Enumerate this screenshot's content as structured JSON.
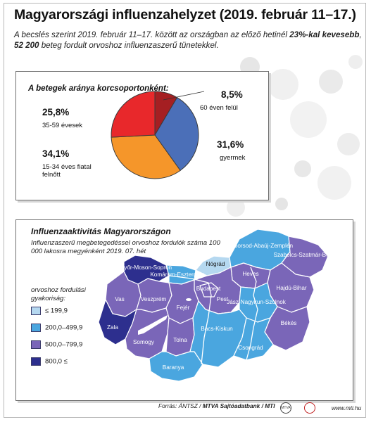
{
  "header": {
    "title": "Magyarországi influenzahelyzet (2019. február 11–17.)",
    "intro_part1": "A becslés szerint 2019. február 11–17. között az országban az előző hetinél ",
    "intro_bold1": "23%-kal kevesebb",
    "intro_part2": ", ",
    "intro_bold2": "52 200",
    "intro_part3": " beteg fordult orvoshoz influenzaszerű tünetekkel."
  },
  "chart_data": [
    {
      "type": "pie",
      "title": "A betegek aránya korcsoportonként:",
      "slices": [
        {
          "label": "60 éven felül",
          "pct_label": "8,5%",
          "value": 8.5,
          "color": "#a51f22"
        },
        {
          "label": "gyermek",
          "pct_label": "31,6%",
          "value": 31.6,
          "color": "#4b6fb8"
        },
        {
          "label": "15-34 éves fiatal felnőtt",
          "pct_label": "34,1%",
          "value": 34.1,
          "color": "#f5962a"
        },
        {
          "label": "35-59 évesek",
          "pct_label": "25,8%",
          "value": 25.8,
          "color": "#e8282b"
        }
      ]
    },
    {
      "type": "choropleth",
      "title": "Influenzaaktivitás Magyarországon",
      "subtitle": "Influenzaszerű megbetegedéssel orvoshoz fordulók száma 100 000 lakosra megyénként 2019. 07. hét",
      "legend_title": "orvoshoz fordulási gyakoriság:",
      "classes": [
        {
          "label": "≤  199,9",
          "color": "#b5d8f0"
        },
        {
          "label": "200,0–499,9",
          "color": "#4aa6df"
        },
        {
          "label": "500,0–799,9",
          "color": "#7a66b8"
        },
        {
          "label": "800,0  ≤",
          "color": "#2d2f8e"
        }
      ],
      "regions": [
        {
          "name": "Győr-Moson-Sopron",
          "class": 3
        },
        {
          "name": "Komárom-Esztergom",
          "class": 1
        },
        {
          "name": "Nógrád",
          "class": 0
        },
        {
          "name": "Borsod-Abaúj-Zemplén",
          "class": 1
        },
        {
          "name": "Szabolcs-Szatmár-Bereg",
          "class": 2
        },
        {
          "name": "Heves",
          "class": 2
        },
        {
          "name": "Hajdú-Bihar",
          "class": 2
        },
        {
          "name": "Vas",
          "class": 2
        },
        {
          "name": "Veszprém",
          "class": 2
        },
        {
          "name": "Budapest",
          "class": 2
        },
        {
          "name": "Pest",
          "class": 2
        },
        {
          "name": "Jász-Nagykun-Szolnok",
          "class": 1
        },
        {
          "name": "Fejér",
          "class": 2
        },
        {
          "name": "Zala",
          "class": 3
        },
        {
          "name": "Békés",
          "class": 2
        },
        {
          "name": "Somogy",
          "class": 2
        },
        {
          "name": "Tolna",
          "class": 2
        },
        {
          "name": "Bács-Kiskun",
          "class": 1
        },
        {
          "name": "Csongrád",
          "class": 1
        },
        {
          "name": "Baranya",
          "class": 1
        }
      ]
    }
  ],
  "footer": {
    "source_prefix": "Forrás: ÁNTSZ / ",
    "source_bold": "MTVA Sajtóadatbank / MTI",
    "website": "www.mti.hu"
  },
  "colors": {
    "water": "#ffffff",
    "border": "#ffffff",
    "panel_border": "#6e6e6e"
  }
}
